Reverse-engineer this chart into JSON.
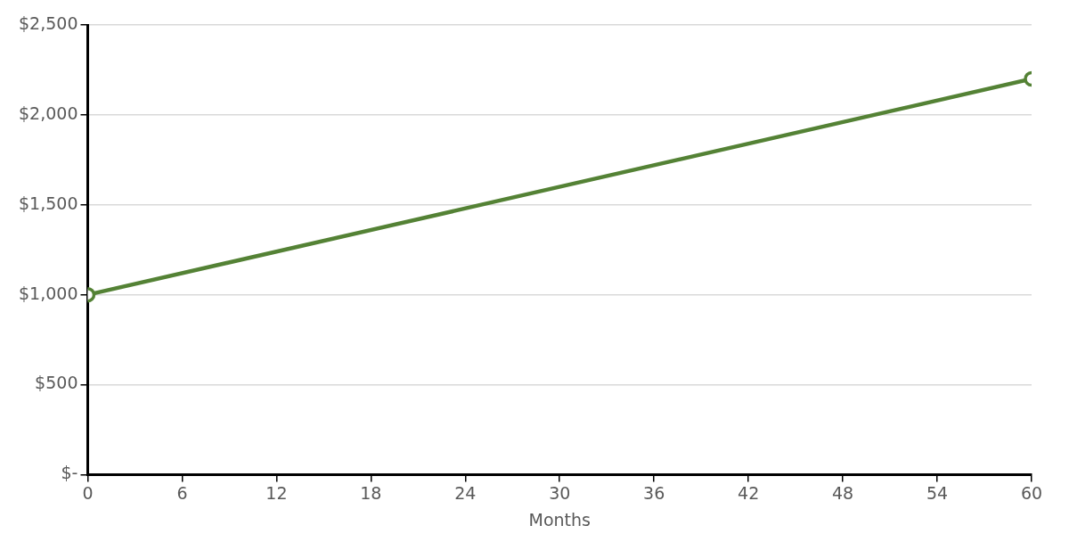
{
  "chart_data": {
    "type": "line",
    "xlabel": "Months",
    "x": [
      0,
      60
    ],
    "series": [
      {
        "color": "#548235",
        "values": [
          1000,
          2200
        ]
      }
    ],
    "xlim": [
      0,
      60
    ],
    "xticks": [
      0,
      6,
      12,
      18,
      24,
      30,
      36,
      42,
      48,
      54,
      60
    ],
    "ylim": [
      0,
      2500
    ],
    "yticks": [
      {
        "value": 0,
        "label": "$-"
      },
      {
        "value": 500,
        "label": "$500"
      },
      {
        "value": 1000,
        "label": "$1,000"
      },
      {
        "value": 1500,
        "label": "$1,500"
      },
      {
        "value": 2000,
        "label": "$2,000"
      },
      {
        "value": 2500,
        "label": "$2,500"
      }
    ],
    "grid": "y",
    "legend": false,
    "marker": "circle",
    "line_style": "solid"
  }
}
